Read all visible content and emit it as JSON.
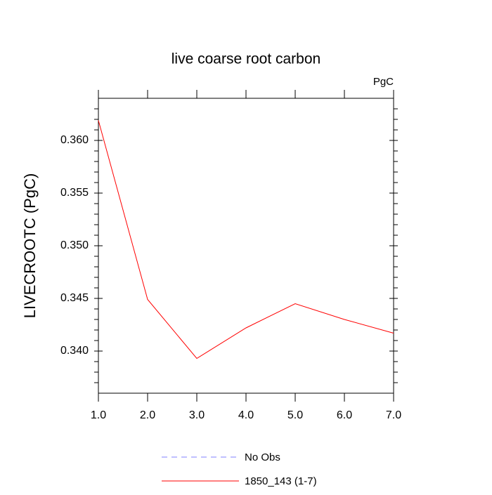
{
  "chart_data": {
    "type": "line",
    "title": "live coarse root carbon",
    "units_label": "PgC",
    "y_label": "LIVECROOTC  (PgC)",
    "x": [
      1,
      2,
      3,
      4,
      5,
      6,
      7
    ],
    "xlim": [
      1,
      7
    ],
    "xticks": [
      {
        "value": 1,
        "label": "1.0"
      },
      {
        "value": 2,
        "label": "2.0"
      },
      {
        "value": 3,
        "label": "3.0"
      },
      {
        "value": 4,
        "label": "4.0"
      },
      {
        "value": 5,
        "label": "5.0"
      },
      {
        "value": 6,
        "label": "6.0"
      },
      {
        "value": 7,
        "label": "7.0"
      }
    ],
    "ylim": [
      0.336,
      0.364
    ],
    "yticks": [
      {
        "value": 0.34,
        "label": "0.340"
      },
      {
        "value": 0.345,
        "label": "0.345"
      },
      {
        "value": 0.35,
        "label": "0.350"
      },
      {
        "value": 0.355,
        "label": "0.355"
      },
      {
        "value": 0.36,
        "label": "0.360"
      }
    ],
    "y_minor_ticks": [
      0.337,
      0.338,
      0.339,
      0.341,
      0.342,
      0.343,
      0.344,
      0.346,
      0.347,
      0.348,
      0.349,
      0.351,
      0.352,
      0.353,
      0.354,
      0.356,
      0.357,
      0.358,
      0.359,
      0.361,
      0.362,
      0.363
    ],
    "grid": false,
    "series": [
      {
        "name": "No Obs",
        "color": "#8080ff",
        "dashed": true,
        "values": [
          null,
          null,
          null,
          null,
          null,
          null,
          null
        ]
      },
      {
        "name": "1850_143 (1-7)",
        "color": "#ff0000",
        "dashed": false,
        "values": [
          0.3619,
          0.3449,
          0.3393,
          0.3422,
          0.3445,
          0.343,
          0.3417
        ]
      }
    ]
  }
}
